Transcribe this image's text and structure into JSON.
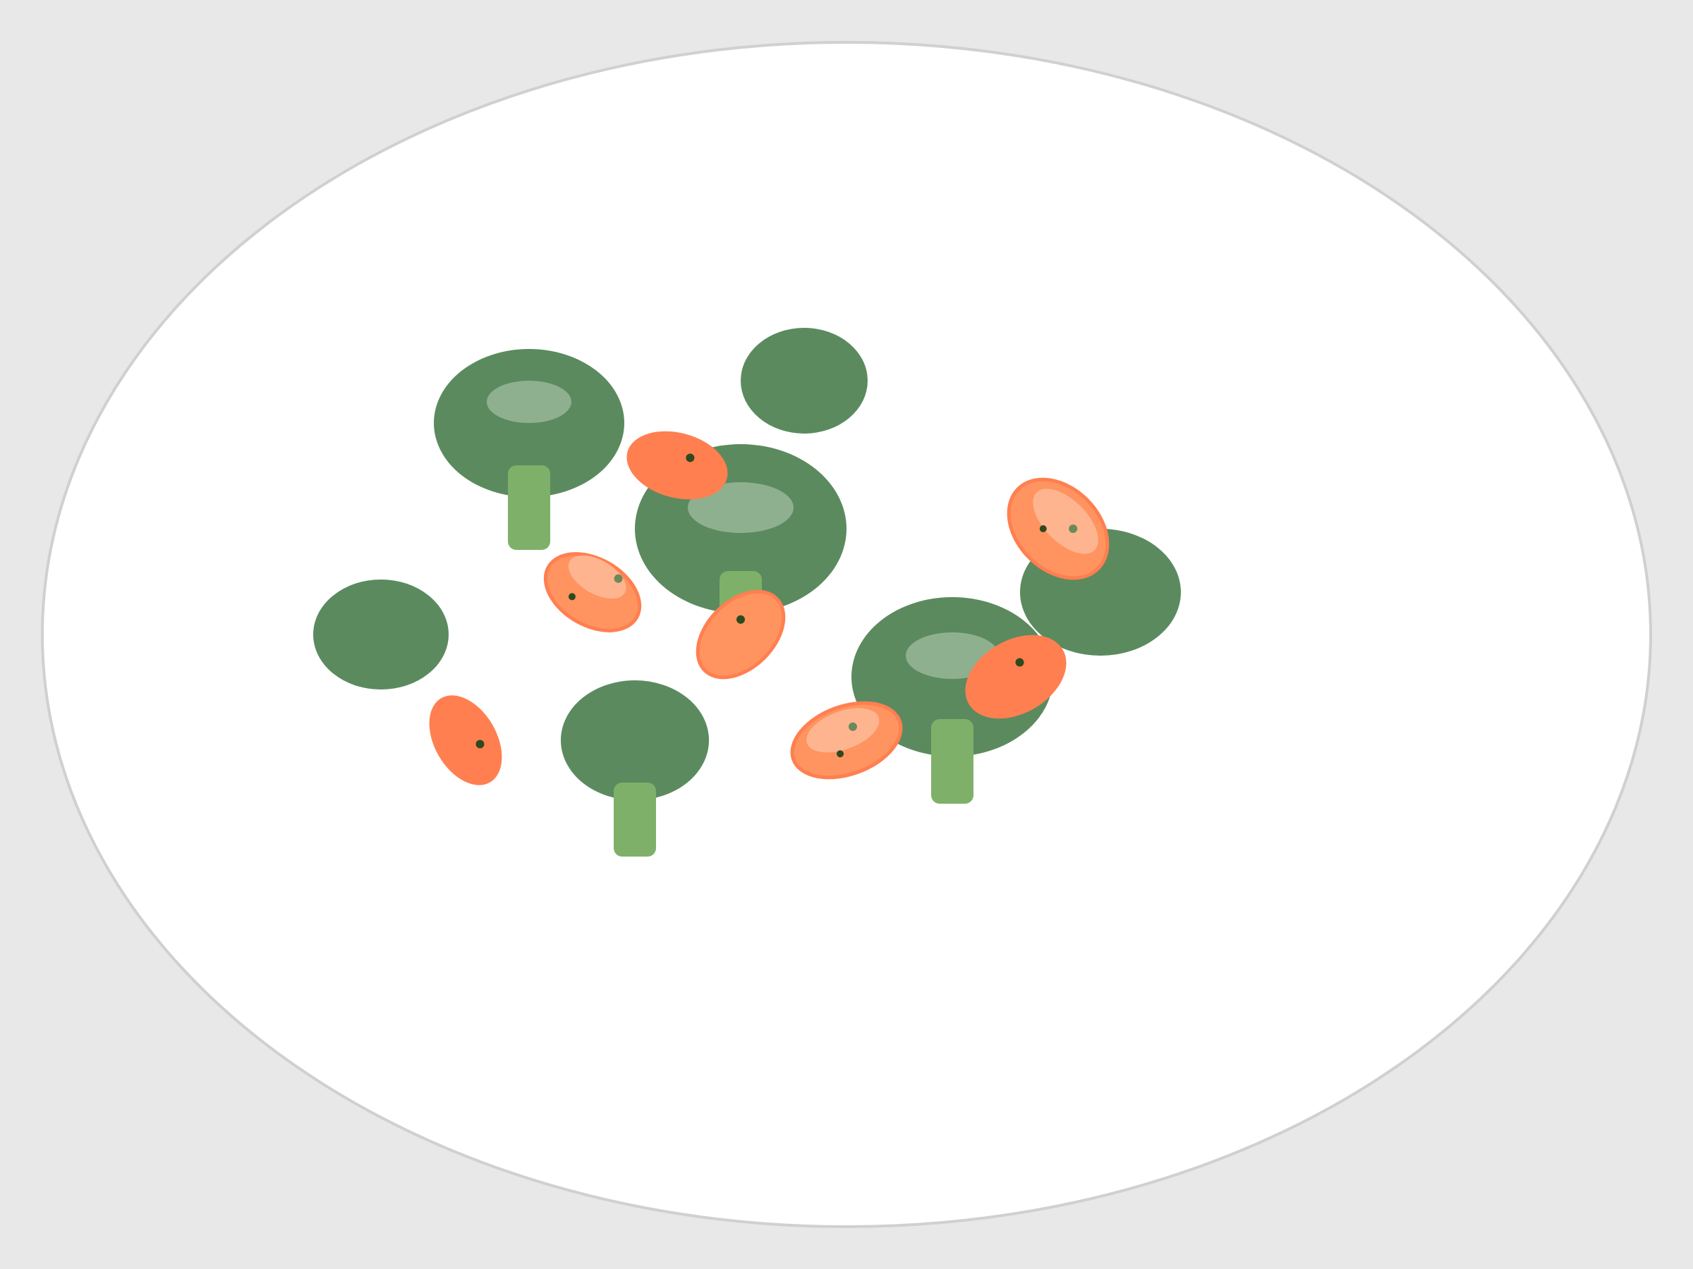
{
  "scene": {
    "colors": {
      "background": "#e8e8e8",
      "plate_fill": "#ffffff",
      "plate_rim": "#d0d0d0",
      "broccoli_floret": "#5b8a5f",
      "broccoli_highlight": "#8fb08f",
      "broccoli_stem": "#7fb069",
      "carrot": "#ff7f50",
      "carrot_light": "#ff9460",
      "carrot_highlight": "#ffb490",
      "carrot_seed": "#2d4a1e",
      "carrot_seed_light": "#6a8a5a"
    },
    "plate": {
      "name": "plate"
    },
    "broccoli_with_stem": [
      {
        "name": "broccoli-1"
      },
      {
        "name": "broccoli-2"
      },
      {
        "name": "broccoli-3"
      },
      {
        "name": "broccoli-4"
      }
    ],
    "broccoli_floret_only": [
      {
        "name": "broccoli-floret-1"
      },
      {
        "name": "broccoli-floret-2"
      },
      {
        "name": "broccoli-floret-3"
      }
    ],
    "carrot_slices": [
      {
        "name": "carrot-slice-1",
        "style": "plain"
      },
      {
        "name": "carrot-slice-2",
        "style": "glossy"
      },
      {
        "name": "carrot-slice-3",
        "style": "glossy"
      },
      {
        "name": "carrot-slice-4",
        "style": "plain"
      },
      {
        "name": "carrot-slice-5",
        "style": "glossy"
      },
      {
        "name": "carrot-slice-6",
        "style": "glossy"
      },
      {
        "name": "carrot-slice-7",
        "style": "plain"
      }
    ]
  }
}
